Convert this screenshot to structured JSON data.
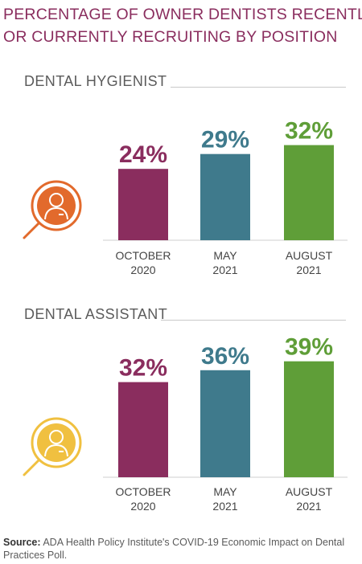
{
  "title_lines": [
    "PERCENTAGE OF OWNER DENTISTS RECENTLY",
    "OR CURRENTLY RECRUITING BY POSITION"
  ],
  "colors": {
    "title": "#8a2d5e",
    "oct": "#8a2d5e",
    "may": "#3f7a8c",
    "aug": "#5f9e38",
    "icon_hygienist": "#e26a2c",
    "icon_assistant": "#f0c040"
  },
  "chart_data": [
    {
      "type": "bar",
      "title": "DENTAL HYGIENIST",
      "categories": [
        [
          "OCTOBER",
          "2020"
        ],
        [
          "MAY",
          "2021"
        ],
        [
          "AUGUST",
          "2021"
        ]
      ],
      "values": [
        24,
        29,
        32
      ],
      "labels": [
        "24%",
        "29%",
        "32%"
      ],
      "ylim": [
        0,
        40
      ],
      "icon": "dentist-magnifier-icon"
    },
    {
      "type": "bar",
      "title": "DENTAL ASSISTANT",
      "categories": [
        [
          "OCTOBER",
          "2020"
        ],
        [
          "MAY",
          "2021"
        ],
        [
          "AUGUST",
          "2021"
        ]
      ],
      "values": [
        32,
        36,
        39
      ],
      "labels": [
        "32%",
        "36%",
        "39%"
      ],
      "ylim": [
        0,
        40
      ],
      "icon": "dentist-magnifier-icon"
    }
  ],
  "source": {
    "label": "Source:",
    "text": "ADA Health Policy Institute's COVID-19 Economic Impact on Dental Practices Poll."
  }
}
